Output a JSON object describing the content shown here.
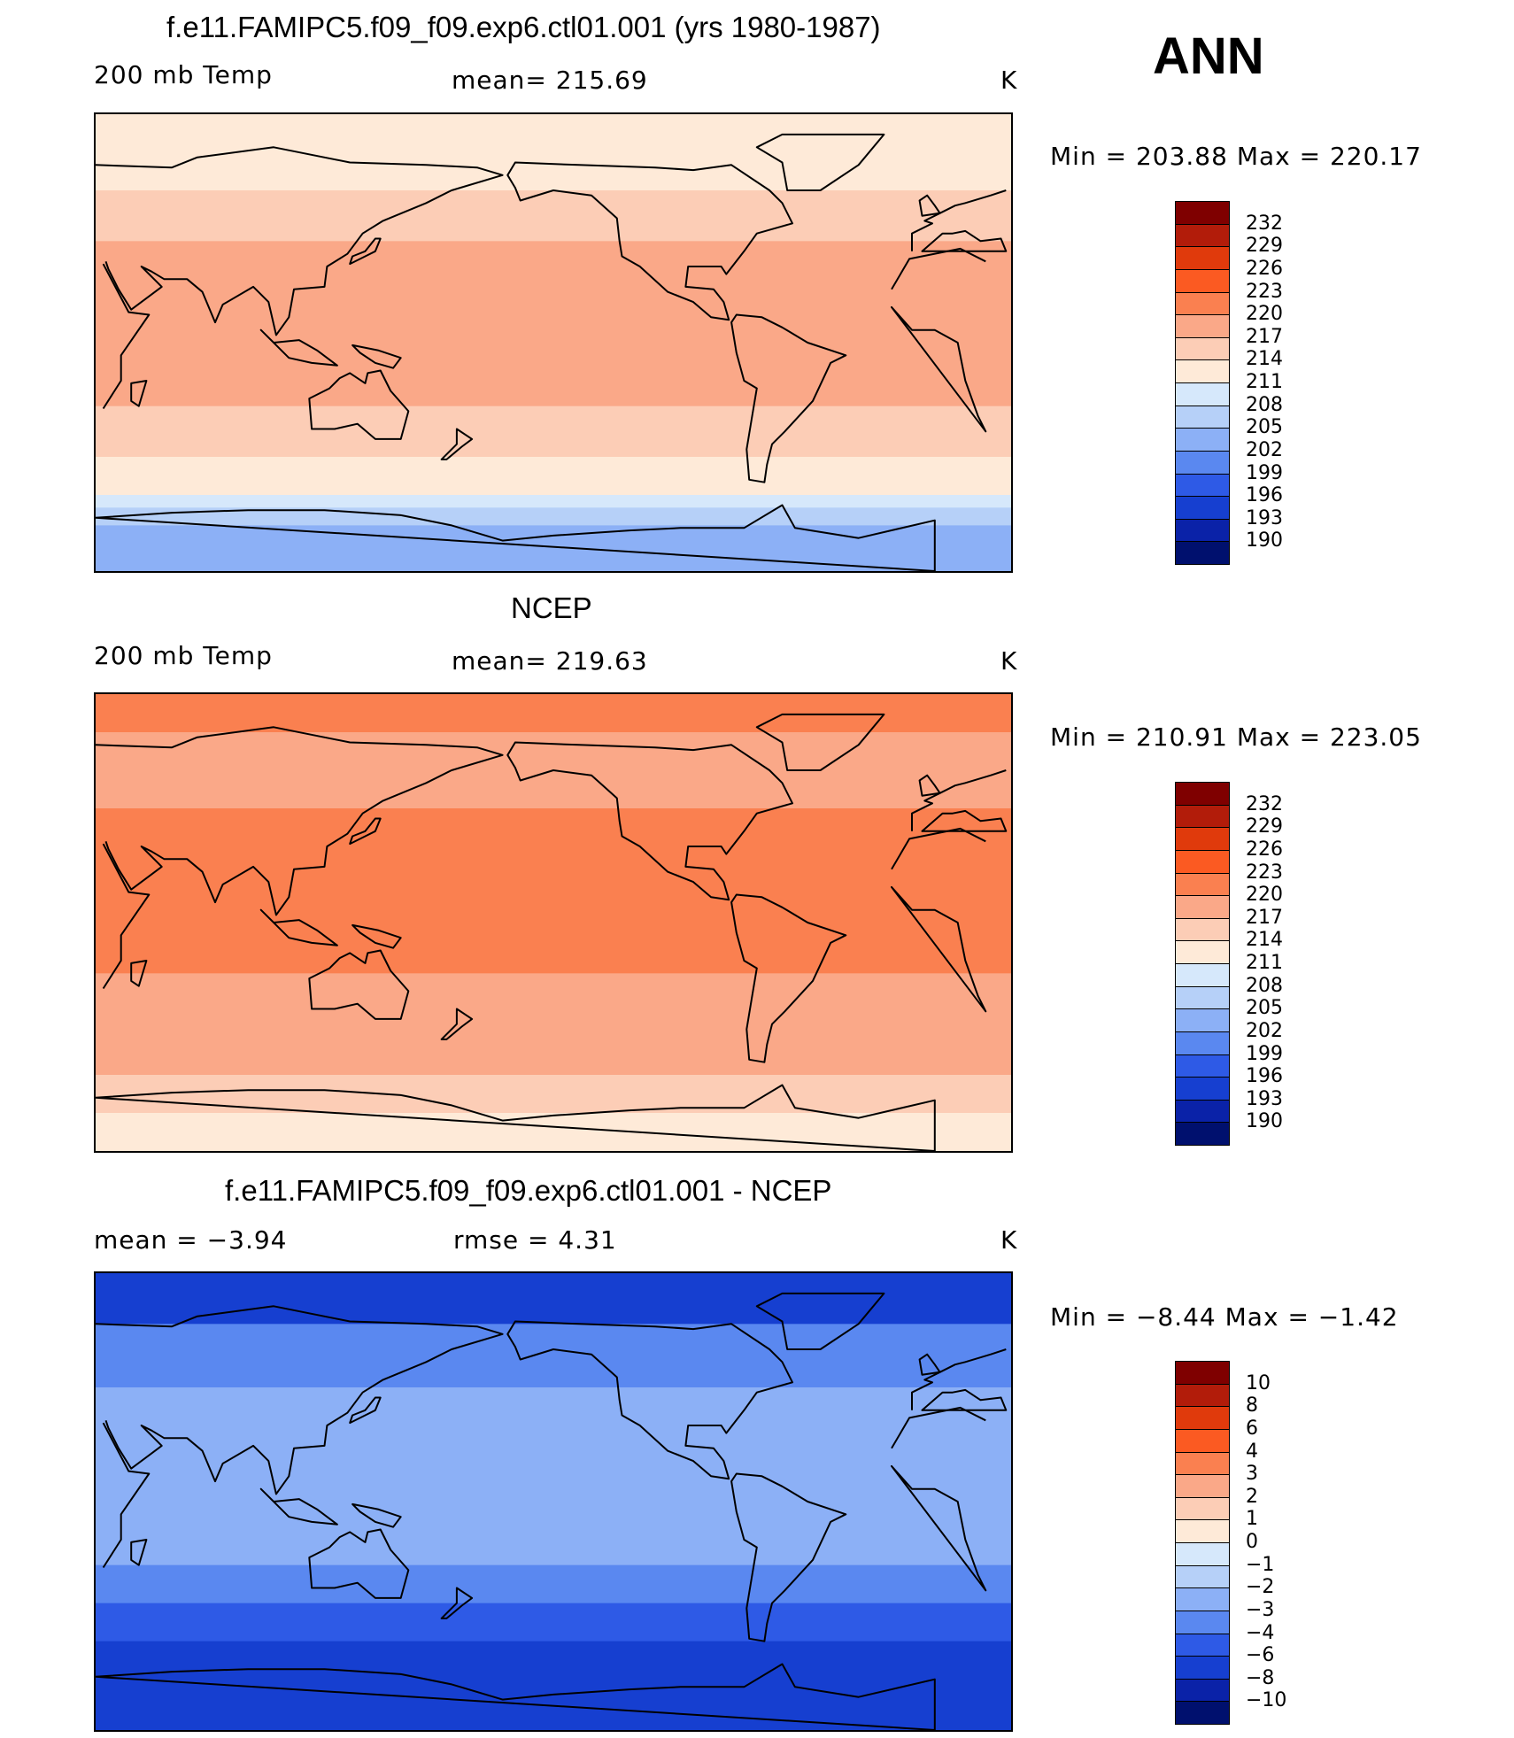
{
  "season": "ANN",
  "panels": [
    {
      "title": "f.e11.FAMIPC5.f09_f09.exp6.ctl01.001 (yrs 1980-1987)",
      "left_label": "200 mb Temp",
      "center_label": "mean= 215.69",
      "unit": "K",
      "minmax": "Min = 203.88 Max = 220.17",
      "levels": [
        "232",
        "229",
        "226",
        "223",
        "220",
        "217",
        "214",
        "211",
        "208",
        "205",
        "202",
        "199",
        "196",
        "193",
        "190"
      ],
      "colors": [
        "#7f0000",
        "#b21c0a",
        "#e03a0c",
        "#fb5a22",
        "#fa8050",
        "#faa888",
        "#fccdb6",
        "#feead8",
        "#d6e8fb",
        "#b6d0f8",
        "#8cb0f6",
        "#5a88f0",
        "#2e5ae6",
        "#163fd0",
        "#0a22a8",
        "#00106e"
      ],
      "bands": [
        {
          "lat_from": 90,
          "lat_to": 60,
          "color": "#feead8"
        },
        {
          "lat_from": 60,
          "lat_to": 40,
          "color": "#fccdb6"
        },
        {
          "lat_from": 40,
          "lat_to": -25,
          "color": "#faa888"
        },
        {
          "lat_from": -25,
          "lat_to": -45,
          "color": "#fccdb6"
        },
        {
          "lat_from": -45,
          "lat_to": -60,
          "color": "#feead8"
        },
        {
          "lat_from": -60,
          "lat_to": -65,
          "color": "#d6e8fb"
        },
        {
          "lat_from": -65,
          "lat_to": -72,
          "color": "#b6d0f8"
        },
        {
          "lat_from": -72,
          "lat_to": -90,
          "color": "#8cb0f6"
        }
      ]
    },
    {
      "title": "NCEP",
      "left_label": "200 mb Temp",
      "center_label": "mean= 219.63",
      "unit": "K",
      "minmax": "Min = 210.91 Max = 223.05",
      "levels": [
        "232",
        "229",
        "226",
        "223",
        "220",
        "217",
        "214",
        "211",
        "208",
        "205",
        "202",
        "199",
        "196",
        "193",
        "190"
      ],
      "colors": [
        "#7f0000",
        "#b21c0a",
        "#e03a0c",
        "#fb5a22",
        "#fa8050",
        "#faa888",
        "#fccdb6",
        "#feead8",
        "#d6e8fb",
        "#b6d0f8",
        "#8cb0f6",
        "#5a88f0",
        "#2e5ae6",
        "#163fd0",
        "#0a22a8",
        "#00106e"
      ],
      "bands": [
        {
          "lat_from": 90,
          "lat_to": 75,
          "color": "#fa8050"
        },
        {
          "lat_from": 75,
          "lat_to": 45,
          "color": "#faa888"
        },
        {
          "lat_from": 45,
          "lat_to": -20,
          "color": "#fa8050"
        },
        {
          "lat_from": -20,
          "lat_to": -60,
          "color": "#faa888"
        },
        {
          "lat_from": -60,
          "lat_to": -75,
          "color": "#fccdb6"
        },
        {
          "lat_from": -75,
          "lat_to": -90,
          "color": "#feead8"
        }
      ]
    },
    {
      "title": "f.e11.FAMIPC5.f09_f09.exp6.ctl01.001 - NCEP",
      "left_label": "mean =   −3.94",
      "center_label": "rmse =    4.31",
      "unit": "K",
      "minmax": "Min =  −8.44 Max =  −1.42",
      "levels": [
        "10",
        "8",
        "6",
        "4",
        "3",
        "2",
        "1",
        "0",
        "−1",
        "−2",
        "−3",
        "−4",
        "−6",
        "−8",
        "−10"
      ],
      "colors": [
        "#7f0000",
        "#b21c0a",
        "#e03a0c",
        "#fb5a22",
        "#fa8050",
        "#faa888",
        "#fccdb6",
        "#feead8",
        "#d6e8fb",
        "#b6d0f8",
        "#8cb0f6",
        "#5a88f0",
        "#2e5ae6",
        "#163fd0",
        "#0a22a8",
        "#00106e"
      ],
      "bands": [
        {
          "lat_from": 90,
          "lat_to": 70,
          "color": "#163fd0"
        },
        {
          "lat_from": 70,
          "lat_to": 45,
          "color": "#5a88f0"
        },
        {
          "lat_from": 45,
          "lat_to": -25,
          "color": "#8cb0f6"
        },
        {
          "lat_from": -25,
          "lat_to": -40,
          "color": "#5a88f0"
        },
        {
          "lat_from": -40,
          "lat_to": -55,
          "color": "#2e5ae6"
        },
        {
          "lat_from": -55,
          "lat_to": -90,
          "color": "#163fd0"
        }
      ]
    }
  ]
}
